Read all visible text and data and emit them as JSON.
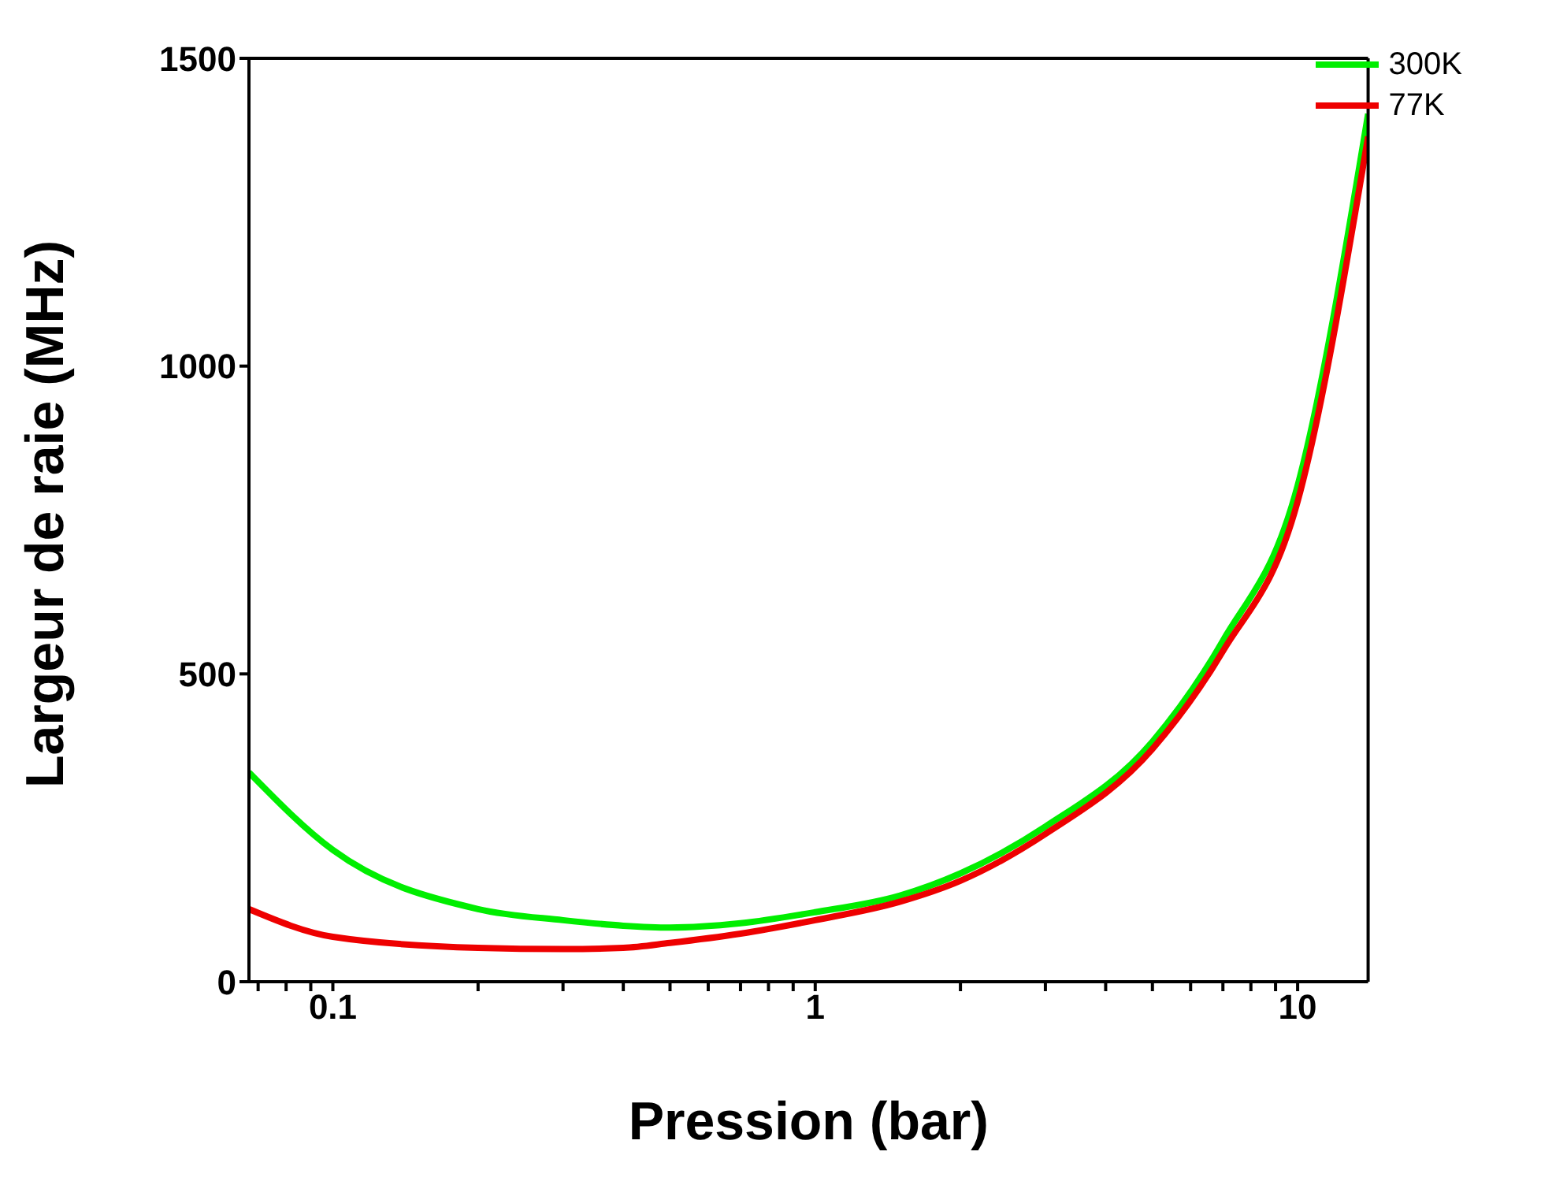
{
  "chart_data": {
    "type": "line",
    "xlabel": "Pression (bar)",
    "ylabel": "Largeur de raie (MHz)",
    "x": [
      0.067,
      0.1,
      0.2,
      0.3,
      0.4,
      0.5,
      0.7,
      1,
      1.5,
      2,
      3,
      5,
      7,
      10,
      14
    ],
    "series": [
      {
        "name": "300K",
        "color": "#00ee00",
        "values": [
          340,
          214,
          118,
          100,
          91,
          88,
          95,
          113,
          140,
          176,
          252,
          390,
          554,
          806,
          1410
        ]
      },
      {
        "name": "77K",
        "color": "#ee0000",
        "values": [
          118,
          73,
          55,
          53,
          55,
          63,
          78,
          100,
          130,
          164,
          240,
          378,
          537,
          780,
          1373
        ]
      }
    ],
    "log": "x",
    "xlim": [
      0.067,
      14
    ],
    "ylim": [
      0,
      1500
    ],
    "yticks": [
      0,
      500,
      1000,
      1500
    ],
    "xticks": [
      {
        "value": 0.07,
        "label": null
      },
      {
        "value": 0.08,
        "label": null
      },
      {
        "value": 0.09,
        "label": null
      },
      0.1,
      {
        "value": 0.2,
        "label": null
      },
      {
        "value": 0.3,
        "label": null
      },
      {
        "value": 0.4,
        "label": null
      },
      {
        "value": 0.5,
        "label": null
      },
      {
        "value": 0.6,
        "label": null
      },
      {
        "value": 0.7,
        "label": null
      },
      {
        "value": 0.8,
        "label": null
      },
      {
        "value": 0.9,
        "label": null
      },
      1,
      {
        "value": 2,
        "label": null
      },
      {
        "value": 3,
        "label": null
      },
      {
        "value": 4,
        "label": null
      },
      {
        "value": 5,
        "label": null
      },
      {
        "value": 6,
        "label": null
      },
      {
        "value": 7,
        "label": null
      },
      {
        "value": 8,
        "label": null
      },
      {
        "value": 9,
        "label": null
      },
      10
    ],
    "legend": "top right",
    "grid": false,
    "marker": "none",
    "line_style": "solid"
  }
}
